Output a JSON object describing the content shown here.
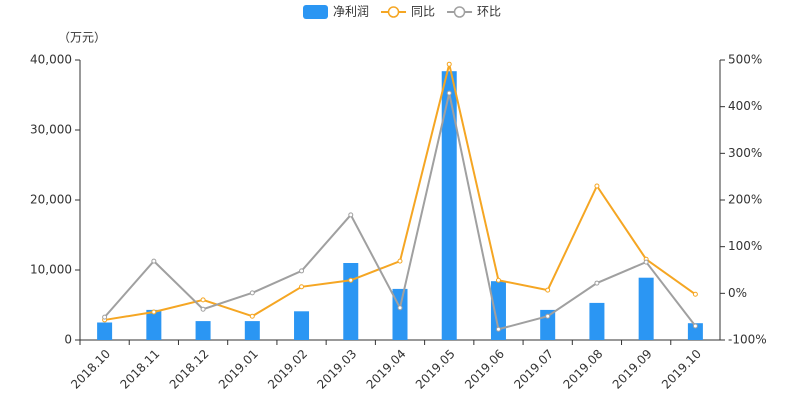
{
  "chart_data": {
    "type": "bar-line",
    "unit_label": "（万元）",
    "categories": [
      "2018.10",
      "2018.11",
      "2018.12",
      "2019.01",
      "2019.02",
      "2019.03",
      "2019.04",
      "2019.05",
      "2019.06",
      "2019.07",
      "2019.08",
      "2019.09",
      "2019.10"
    ],
    "series": [
      {
        "name": "净利润",
        "type": "bar",
        "color": "#2b96f3",
        "axis": "y",
        "values": [
          2500,
          4300,
          2700,
          2700,
          4100,
          11000,
          7300,
          38400,
          8400,
          4300,
          5300,
          8900,
          2400
        ]
      },
      {
        "name": "同比",
        "type": "line",
        "color": "#f5a623",
        "axis": "y2",
        "values": [
          -57,
          -40,
          -14,
          -49,
          14,
          28,
          69,
          491,
          28,
          7,
          230,
          73,
          -2
        ]
      },
      {
        "name": "环比",
        "type": "line",
        "color": "#a0a0a0",
        "axis": "y2",
        "values": [
          -51,
          69,
          -34,
          1,
          48,
          168,
          -31,
          429,
          -77,
          -49,
          22,
          67,
          -70
        ]
      }
    ],
    "ylim": [
      0,
      40000
    ],
    "yticks": [
      0,
      {
        "value": 10000,
        "label": "10,000"
      },
      {
        "value": 20000,
        "label": "20,000"
      },
      {
        "value": 30000,
        "label": "30,000"
      },
      {
        "value": 40000,
        "label": "40,000"
      }
    ],
    "y2lim": [
      -100,
      500
    ],
    "y2ticks": [
      {
        "value": -100,
        "label": "-100%"
      },
      {
        "value": 0,
        "label": "0%"
      },
      {
        "value": 100,
        "label": "100%"
      },
      {
        "value": 200,
        "label": "200%"
      },
      {
        "value": 300,
        "label": "300%"
      },
      {
        "value": 400,
        "label": "400%"
      },
      {
        "value": 500,
        "label": "500%"
      }
    ]
  }
}
